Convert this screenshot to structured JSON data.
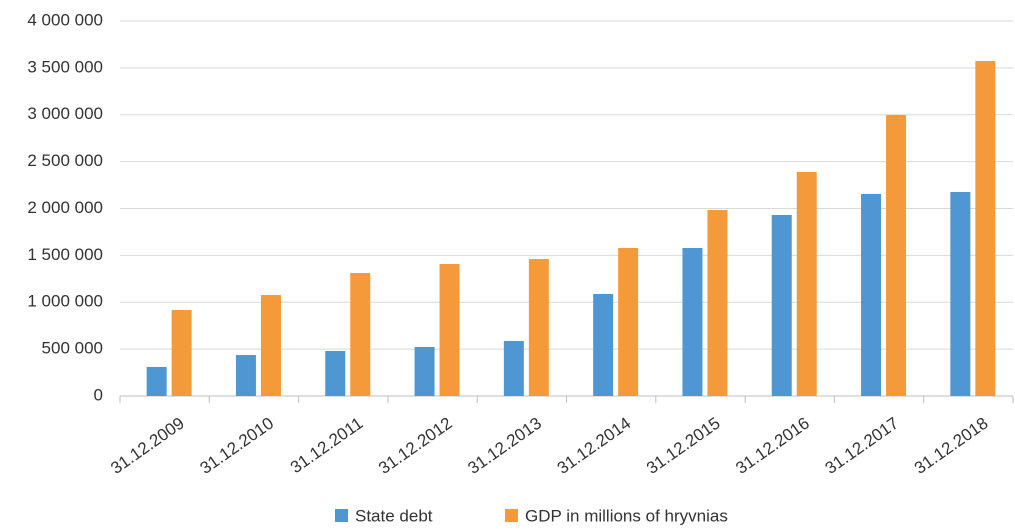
{
  "chart_data": {
    "type": "bar",
    "categories": [
      "31.12.2009",
      "31.12.2010",
      "31.12.2011",
      "31.12.2012",
      "31.12.2013",
      "31.12.2014",
      "31.12.2015",
      "31.12.2016",
      "31.12.2017",
      "31.12.2018"
    ],
    "series": [
      {
        "name": "State debt",
        "color": "#4f97d3",
        "values": [
          310000,
          437000,
          480000,
          523000,
          587000,
          1088000,
          1579000,
          1931000,
          2155000,
          2176000
        ]
      },
      {
        "name": "GDP in millions of hryvnias",
        "color": "#f59a3b",
        "values": [
          917000,
          1077000,
          1312000,
          1408000,
          1461000,
          1579000,
          1984000,
          2389000,
          2997000,
          3573000
        ]
      }
    ],
    "ylim": [
      0,
      4000000
    ],
    "yticks": [
      0,
      {
        "value": 500000,
        "label": "500 000"
      },
      {
        "value": 1000000,
        "label": "1 000 000"
      },
      {
        "value": 1500000,
        "label": "1 500 000"
      },
      {
        "value": 2000000,
        "label": "2 000 000"
      },
      {
        "value": 2500000,
        "label": "2 500 000"
      },
      {
        "value": 3000000,
        "label": "3 000 000"
      },
      {
        "value": 3500000,
        "label": "3 500 000"
      },
      {
        "value": 4000000,
        "label": "4 000 000"
      }
    ],
    "grid": true,
    "legend": "bottom"
  }
}
